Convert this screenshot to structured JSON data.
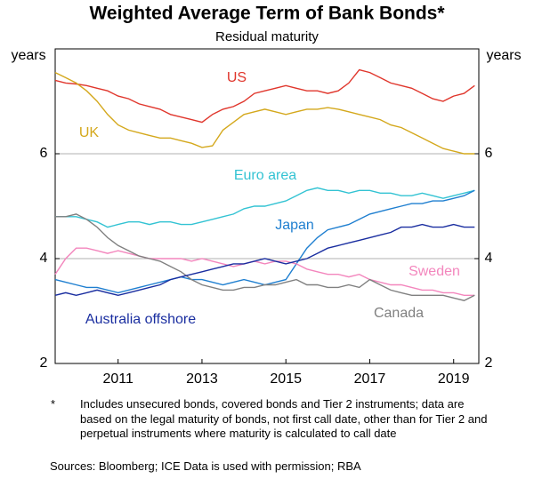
{
  "chart_data": {
    "type": "line",
    "title": "Weighted Average Term of Bank Bonds*",
    "subtitle": "Residual maturity",
    "y_label": "years",
    "y2_label": "years",
    "x": [
      2009.75,
      2010,
      2010.25,
      2010.5,
      2010.75,
      2011,
      2011.25,
      2011.5,
      2011.75,
      2012,
      2012.25,
      2012.5,
      2012.75,
      2013,
      2013.25,
      2013.5,
      2013.75,
      2014,
      2014.25,
      2014.5,
      2014.75,
      2015,
      2015.25,
      2015.5,
      2015.75,
      2016,
      2016.25,
      2016.5,
      2016.75,
      2017,
      2017.25,
      2017.5,
      2017.75,
      2018,
      2018.25,
      2018.5,
      2018.75,
      2019,
      2019.25,
      2019.5,
      2019.75
    ],
    "xlim": [
      2009.75,
      2019.85
    ],
    "xticks": [
      {
        "value": 2011.25,
        "label": "2011"
      },
      {
        "value": 2013.25,
        "label": "2013"
      },
      {
        "value": 2015.25,
        "label": "2015"
      },
      {
        "value": 2017.25,
        "label": "2017"
      },
      {
        "value": 2019.25,
        "label": "2019"
      }
    ],
    "ylim": [
      2,
      8
    ],
    "yticks": [
      2,
      4,
      6
    ],
    "grid": true,
    "series": [
      {
        "name": "US",
        "color": "#e0362c",
        "values": [
          7.4,
          7.35,
          7.33,
          7.3,
          7.25,
          7.2,
          7.1,
          7.05,
          6.95,
          6.9,
          6.85,
          6.75,
          6.7,
          6.65,
          6.6,
          6.75,
          6.85,
          6.9,
          7.0,
          7.15,
          7.2,
          7.25,
          7.3,
          7.25,
          7.2,
          7.2,
          7.15,
          7.2,
          7.35,
          7.6,
          7.55,
          7.45,
          7.35,
          7.3,
          7.25,
          7.15,
          7.05,
          7.0,
          7.1,
          7.15,
          7.3
        ]
      },
      {
        "name": "UK",
        "color": "#d4a81c",
        "values": [
          7.55,
          7.45,
          7.35,
          7.2,
          7.0,
          6.75,
          6.55,
          6.45,
          6.4,
          6.35,
          6.3,
          6.3,
          6.25,
          6.2,
          6.12,
          6.15,
          6.45,
          6.6,
          6.75,
          6.8,
          6.85,
          6.8,
          6.75,
          6.8,
          6.85,
          6.85,
          6.88,
          6.85,
          6.8,
          6.75,
          6.7,
          6.65,
          6.55,
          6.5,
          6.4,
          6.3,
          6.2,
          6.1,
          6.05,
          6.0,
          6.0
        ]
      },
      {
        "name": "Euro area",
        "color": "#33c3d3",
        "values": [
          4.8,
          4.8,
          4.8,
          4.75,
          4.7,
          4.6,
          4.65,
          4.7,
          4.7,
          4.65,
          4.7,
          4.7,
          4.65,
          4.65,
          4.7,
          4.75,
          4.8,
          4.85,
          4.95,
          5.0,
          5.0,
          5.05,
          5.1,
          5.2,
          5.3,
          5.35,
          5.3,
          5.3,
          5.25,
          5.3,
          5.3,
          5.25,
          5.25,
          5.2,
          5.2,
          5.25,
          5.2,
          5.15,
          5.2,
          5.25,
          5.3
        ]
      },
      {
        "name": "Japan",
        "color": "#1f7fd0",
        "values": [
          3.6,
          3.55,
          3.5,
          3.45,
          3.45,
          3.4,
          3.35,
          3.4,
          3.45,
          3.5,
          3.55,
          3.6,
          3.65,
          3.6,
          3.6,
          3.55,
          3.5,
          3.55,
          3.6,
          3.55,
          3.5,
          3.55,
          3.6,
          3.9,
          4.2,
          4.4,
          4.55,
          4.6,
          4.65,
          4.75,
          4.85,
          4.9,
          4.95,
          5.0,
          5.05,
          5.05,
          5.1,
          5.1,
          5.15,
          5.2,
          5.3
        ]
      },
      {
        "name": "Sweden",
        "color": "#f386bd",
        "values": [
          3.7,
          4.0,
          4.2,
          4.2,
          4.15,
          4.1,
          4.15,
          4.1,
          4.05,
          4.0,
          4.0,
          4.0,
          4.0,
          3.95,
          4.0,
          3.95,
          3.9,
          3.85,
          3.9,
          3.95,
          3.9,
          3.95,
          3.95,
          3.9,
          3.8,
          3.75,
          3.7,
          3.7,
          3.65,
          3.7,
          3.6,
          3.55,
          3.5,
          3.5,
          3.45,
          3.4,
          3.4,
          3.35,
          3.35,
          3.3,
          3.3
        ]
      },
      {
        "name": "Canada",
        "color": "#808080",
        "values": [
          4.8,
          4.8,
          4.85,
          4.75,
          4.6,
          4.4,
          4.25,
          4.15,
          4.05,
          4.0,
          3.95,
          3.85,
          3.75,
          3.6,
          3.5,
          3.45,
          3.4,
          3.4,
          3.45,
          3.45,
          3.5,
          3.5,
          3.55,
          3.6,
          3.5,
          3.5,
          3.45,
          3.45,
          3.5,
          3.45,
          3.6,
          3.5,
          3.4,
          3.35,
          3.3,
          3.3,
          3.3,
          3.3,
          3.25,
          3.2,
          3.3
        ]
      },
      {
        "name": "Australia offshore",
        "color": "#1a2ea0",
        "values": [
          3.3,
          3.35,
          3.3,
          3.35,
          3.4,
          3.35,
          3.3,
          3.35,
          3.4,
          3.45,
          3.5,
          3.6,
          3.65,
          3.7,
          3.75,
          3.8,
          3.85,
          3.9,
          3.9,
          3.95,
          4.0,
          3.95,
          3.9,
          3.95,
          4.0,
          4.1,
          4.2,
          4.25,
          4.3,
          4.35,
          4.4,
          4.45,
          4.5,
          4.6,
          4.6,
          4.65,
          4.6,
          4.6,
          4.65,
          4.6,
          4.6
        ]
      }
    ],
    "footnote_marker": "*",
    "footnote": "Includes unsecured bonds, covered bonds and Tier 2 instruments; data are based on the legal maturity of bonds, not first call date, other than for Tier 2 and perpetual instruments where maturity is calculated to call date",
    "sources": "Sources:  Bloomberg; ICE Data is used with permission; RBA"
  }
}
